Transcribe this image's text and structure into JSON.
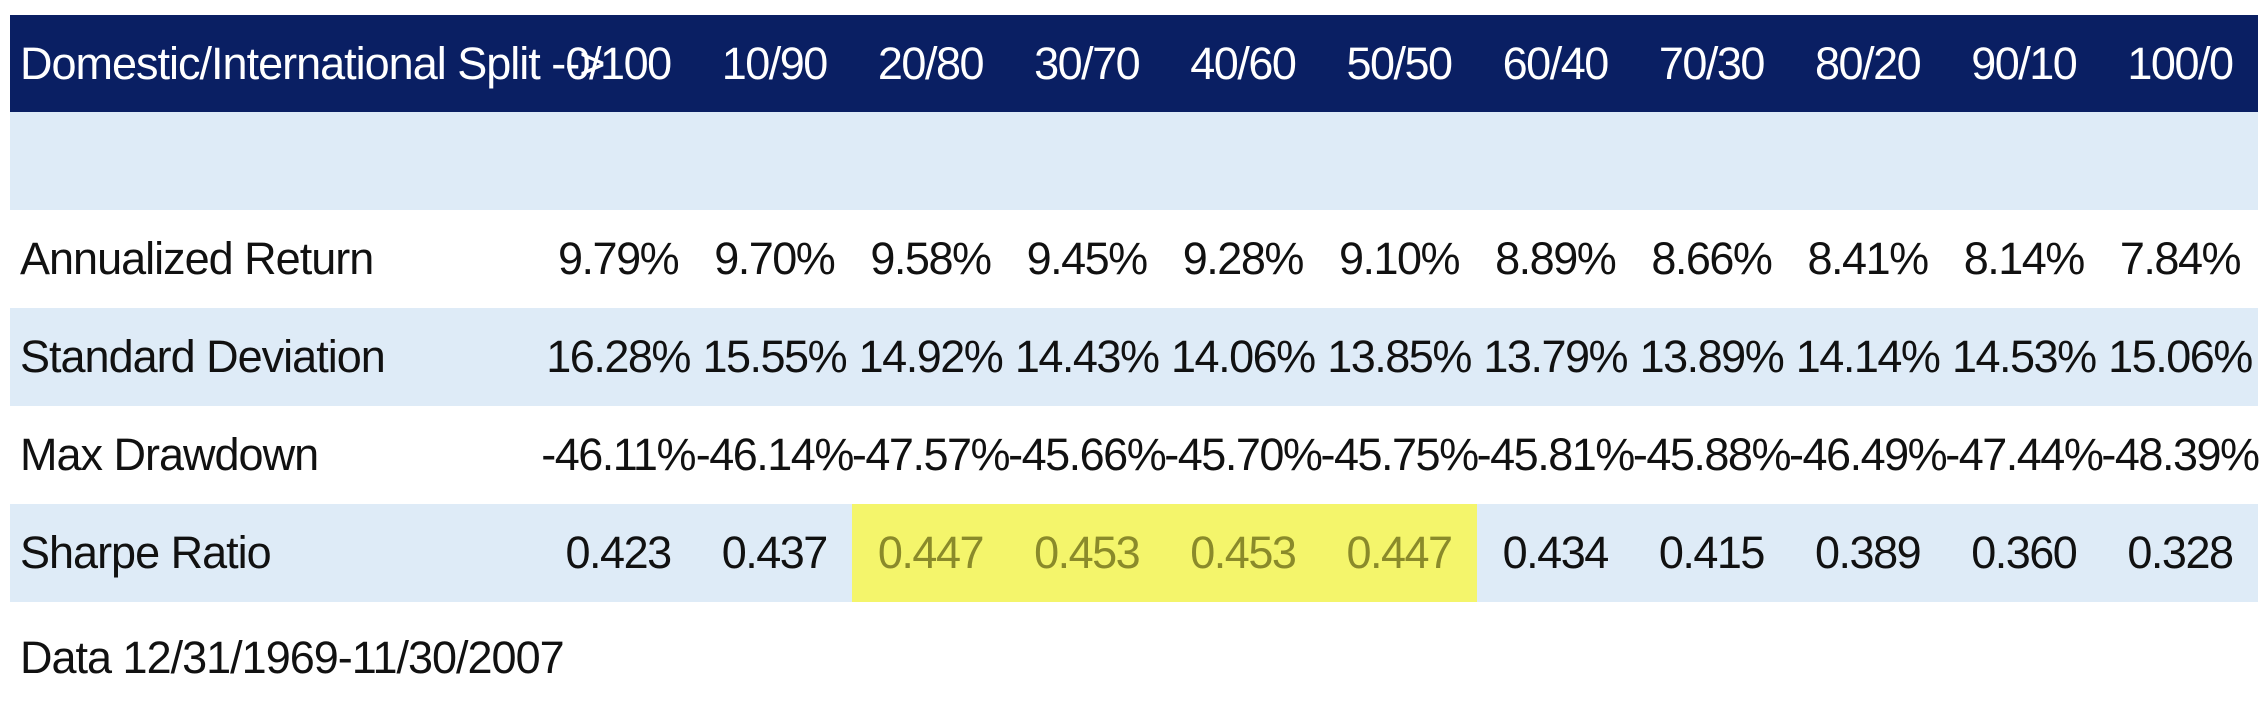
{
  "chart_data": {
    "type": "table",
    "header": {
      "label": "Domestic/International Split -->",
      "columns": [
        "0/100",
        "10/90",
        "20/80",
        "30/70",
        "40/60",
        "50/50",
        "60/40",
        "70/30",
        "80/20",
        "90/10",
        "100/0"
      ]
    },
    "rows": [
      {
        "label": "Annualized Return",
        "values": [
          "9.79%",
          "9.70%",
          "9.58%",
          "9.45%",
          "9.28%",
          "9.10%",
          "8.89%",
          "8.66%",
          "8.41%",
          "8.14%",
          "7.84%"
        ]
      },
      {
        "label": "Standard Deviation",
        "values": [
          "16.28%",
          "15.55%",
          "14.92%",
          "14.43%",
          "14.06%",
          "13.85%",
          "13.79%",
          "13.89%",
          "14.14%",
          "14.53%",
          "15.06%"
        ]
      },
      {
        "label": "Max Drawdown",
        "values": [
          "-46.11%",
          "-46.14%",
          "-47.57%",
          "-45.66%",
          "-45.70%",
          "-45.75%",
          "-45.81%",
          "-45.88%",
          "-46.49%",
          "-47.44%",
          "-48.39%"
        ]
      },
      {
        "label": "Sharpe Ratio",
        "values": [
          "0.423",
          "0.437",
          "0.447",
          "0.453",
          "0.453",
          "0.447",
          "0.434",
          "0.415",
          "0.389",
          "0.360",
          "0.328"
        ],
        "highlighted_columns": [
          "20/80",
          "30/70",
          "40/60",
          "50/50"
        ]
      }
    ],
    "footnote": "Data 12/31/1969-11/30/2007"
  },
  "colors": {
    "header_background": "#0a1f63",
    "header_text": "#ffffff",
    "shaded_row": "#deebf7",
    "highlight_fill": "#f4f56b",
    "highlight_text": "#8a8a2a"
  }
}
